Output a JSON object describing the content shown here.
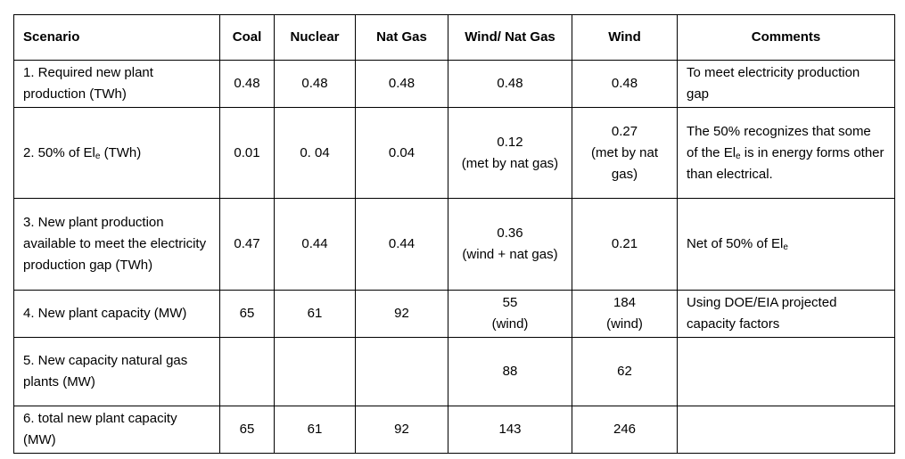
{
  "table": {
    "header": [
      "Scenario",
      "Coal",
      "Nuclear",
      "Nat Gas",
      "Wind/ Nat Gas",
      "Wind",
      "Comments"
    ],
    "rows": [
      [
        "1. Required new plant production (TWh)",
        "0.48",
        "0.48",
        "0.48",
        "0.48",
        "0.48",
        "To meet electricity production gap"
      ],
      [
        {
          "parts": [
            {
              "text": "2. 50% of El"
            },
            {
              "sub": "e"
            },
            {
              "text": " (TWh)"
            }
          ]
        },
        "0.01",
        "0. 04",
        "0.04",
        {
          "value": "0.12",
          "note": "(met by nat gas)"
        },
        {
          "value": "0.27",
          "note": "(met by nat gas)"
        },
        {
          "parts": [
            {
              "text": "The 50% recognizes that some of the El"
            },
            {
              "sub": "e"
            },
            {
              "text": " is in energy forms other than electrical."
            }
          ]
        }
      ],
      [
        "3. New plant production available to meet the electricity production gap (TWh)",
        "0.47",
        "0.44",
        "0.44",
        {
          "value": "0.36",
          "note": "(wind + nat gas)"
        },
        "0.21",
        {
          "parts": [
            {
              "text": "Net of 50% of El"
            },
            {
              "sub": "e"
            }
          ]
        }
      ],
      [
        "4. New plant capacity (MW)",
        "65",
        "61",
        "92",
        {
          "value": "55",
          "note": "(wind)"
        },
        {
          "value": "184",
          "note": "(wind)"
        },
        "Using DOE/EIA projected capacity factors"
      ],
      [
        "5. New capacity natural gas plants (MW)",
        null,
        null,
        null,
        "88",
        "62",
        null
      ],
      [
        "6. total  new plant capacity (MW)",
        "65",
        "61",
        "92",
        "143",
        "246",
        null
      ]
    ]
  }
}
